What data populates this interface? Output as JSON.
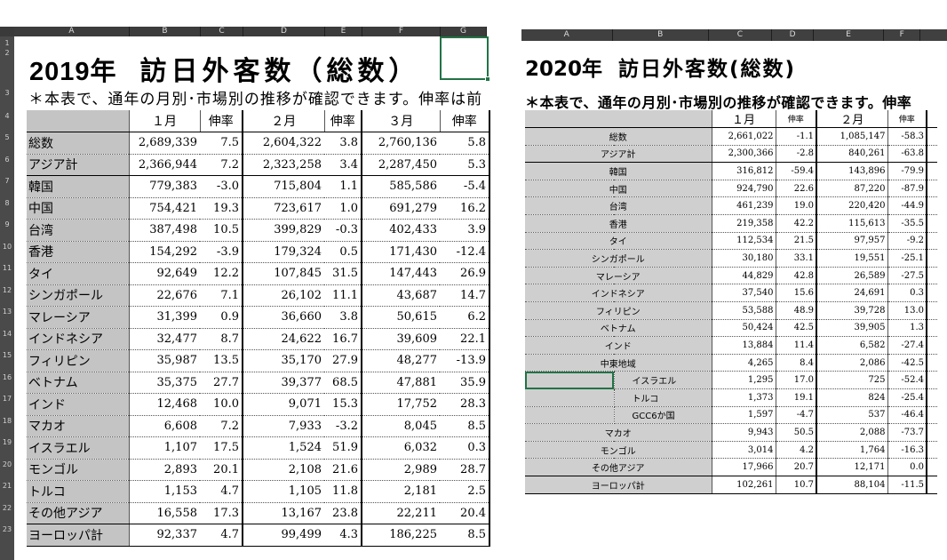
{
  "left": {
    "columns": [
      "A",
      "B",
      "C",
      "D",
      "E",
      "F",
      "G"
    ],
    "row_numbers": [
      "1",
      "2",
      "3",
      "4",
      "5",
      "6",
      "7",
      "8",
      "9",
      "10",
      "11",
      "12",
      "13",
      "14",
      "15",
      "16",
      "17",
      "18",
      "19",
      "20",
      "21",
      "22",
      "23"
    ],
    "title_year": "2019年",
    "title_name": "訪日外客数（総数）",
    "note": "＊本表で、通年の月別･市場別の推移が確認できます。伸率は前",
    "headers": [
      "",
      "１月",
      "伸率",
      "２月",
      "伸率",
      "３月",
      "伸率"
    ],
    "rows": [
      {
        "label": "総数",
        "v1": "2,689,339",
        "r1": "7.5",
        "v2": "2,604,322",
        "r2": "3.8",
        "v3": "2,760,136",
        "r3": "5.8"
      },
      {
        "label": "アジア計",
        "v1": "2,366,944",
        "r1": "7.2",
        "v2": "2,323,258",
        "r2": "3.4",
        "v3": "2,287,450",
        "r3": "5.3"
      },
      {
        "label": "韓国",
        "v1": "779,383",
        "r1": "-3.0",
        "v2": "715,804",
        "r2": "1.1",
        "v3": "585,586",
        "r3": "-5.4"
      },
      {
        "label": "中国",
        "v1": "754,421",
        "r1": "19.3",
        "v2": "723,617",
        "r2": "1.0",
        "v3": "691,279",
        "r3": "16.2"
      },
      {
        "label": "台湾",
        "v1": "387,498",
        "r1": "10.5",
        "v2": "399,829",
        "r2": "-0.3",
        "v3": "402,433",
        "r3": "3.9"
      },
      {
        "label": "香港",
        "v1": "154,292",
        "r1": "-3.9",
        "v2": "179,324",
        "r2": "0.5",
        "v3": "171,430",
        "r3": "-12.4"
      },
      {
        "label": "タイ",
        "v1": "92,649",
        "r1": "12.2",
        "v2": "107,845",
        "r2": "31.5",
        "v3": "147,443",
        "r3": "26.9"
      },
      {
        "label": "シンガポール",
        "v1": "22,676",
        "r1": "7.1",
        "v2": "26,102",
        "r2": "11.1",
        "v3": "43,687",
        "r3": "14.7"
      },
      {
        "label": "マレーシア",
        "v1": "31,399",
        "r1": "0.9",
        "v2": "36,660",
        "r2": "3.8",
        "v3": "50,615",
        "r3": "6.2"
      },
      {
        "label": "インドネシア",
        "v1": "32,477",
        "r1": "8.7",
        "v2": "24,622",
        "r2": "16.7",
        "v3": "39,609",
        "r3": "22.1"
      },
      {
        "label": "フィリピン",
        "v1": "35,987",
        "r1": "13.5",
        "v2": "35,170",
        "r2": "27.9",
        "v3": "48,277",
        "r3": "-13.9"
      },
      {
        "label": "ベトナム",
        "v1": "35,375",
        "r1": "27.7",
        "v2": "39,377",
        "r2": "68.5",
        "v3": "47,881",
        "r3": "35.9"
      },
      {
        "label": "インド",
        "v1": "12,468",
        "r1": "10.0",
        "v2": "9,071",
        "r2": "15.3",
        "v3": "17,752",
        "r3": "28.3"
      },
      {
        "label": "マカオ",
        "v1": "6,608",
        "r1": "7.2",
        "v2": "7,933",
        "r2": "-3.2",
        "v3": "8,045",
        "r3": "8.5"
      },
      {
        "label": "イスラエル",
        "v1": "1,107",
        "r1": "17.5",
        "v2": "1,524",
        "r2": "51.9",
        "v3": "6,032",
        "r3": "0.3"
      },
      {
        "label": "モンゴル",
        "v1": "2,893",
        "r1": "20.1",
        "v2": "2,108",
        "r2": "21.6",
        "v3": "2,989",
        "r3": "28.7"
      },
      {
        "label": "トルコ",
        "v1": "1,153",
        "r1": "4.7",
        "v2": "1,105",
        "r2": "11.8",
        "v3": "2,181",
        "r3": "2.5"
      },
      {
        "label": "その他アジア",
        "v1": "16,558",
        "r1": "17.3",
        "v2": "13,167",
        "r2": "23.8",
        "v3": "22,211",
        "r3": "20.4"
      },
      {
        "label": "ヨーロッパ計",
        "v1": "92,337",
        "r1": "4.7",
        "v2": "99,499",
        "r2": "4.3",
        "v3": "186,225",
        "r3": "8.5"
      }
    ]
  },
  "right": {
    "columns": [
      "A",
      "B",
      "C",
      "D",
      "E",
      "F"
    ],
    "title_year": "2020年",
    "title_name": "訪日外客数(総数)",
    "note": "＊本表で、通年の月別･市場別の推移が確認できます。伸率",
    "headers": [
      "",
      "",
      "１月",
      "伸率",
      "２月",
      "伸率"
    ],
    "rows": [
      {
        "label": "総数",
        "sub": false,
        "v1": "2,661,022",
        "r1": "-1.1",
        "v2": "1,085,147",
        "r2": "-58.3"
      },
      {
        "label": "アジア計",
        "sub": false,
        "v1": "2,300,366",
        "r1": "-2.8",
        "v2": "840,261",
        "r2": "-63.8"
      },
      {
        "label": "韓国",
        "sub": false,
        "v1": "316,812",
        "r1": "-59.4",
        "v2": "143,896",
        "r2": "-79.9"
      },
      {
        "label": "中国",
        "sub": false,
        "v1": "924,790",
        "r1": "22.6",
        "v2": "87,220",
        "r2": "-87.9"
      },
      {
        "label": "台湾",
        "sub": false,
        "v1": "461,239",
        "r1": "19.0",
        "v2": "220,420",
        "r2": "-44.9"
      },
      {
        "label": "香港",
        "sub": false,
        "v1": "219,358",
        "r1": "42.2",
        "v2": "115,613",
        "r2": "-35.5"
      },
      {
        "label": "タイ",
        "sub": false,
        "v1": "112,534",
        "r1": "21.5",
        "v2": "97,957",
        "r2": "-9.2"
      },
      {
        "label": "シンガポール",
        "sub": false,
        "v1": "30,180",
        "r1": "33.1",
        "v2": "19,551",
        "r2": "-25.1"
      },
      {
        "label": "マレーシア",
        "sub": false,
        "v1": "44,829",
        "r1": "42.8",
        "v2": "26,589",
        "r2": "-27.5"
      },
      {
        "label": "インドネシア",
        "sub": false,
        "v1": "37,540",
        "r1": "15.6",
        "v2": "24,691",
        "r2": "0.3"
      },
      {
        "label": "フィリピン",
        "sub": false,
        "v1": "53,588",
        "r1": "48.9",
        "v2": "39,728",
        "r2": "13.0"
      },
      {
        "label": "ベトナム",
        "sub": false,
        "v1": "50,424",
        "r1": "42.5",
        "v2": "39,905",
        "r2": "1.3"
      },
      {
        "label": "インド",
        "sub": false,
        "v1": "13,884",
        "r1": "11.4",
        "v2": "6,582",
        "r2": "-27.4"
      },
      {
        "label": "中東地域",
        "sub": false,
        "v1": "4,265",
        "r1": "8.4",
        "v2": "2,086",
        "r2": "-42.5"
      },
      {
        "label": "イスラエル",
        "sub": true,
        "v1": "1,295",
        "r1": "17.0",
        "v2": "725",
        "r2": "-52.4"
      },
      {
        "label": "トルコ",
        "sub": true,
        "v1": "1,373",
        "r1": "19.1",
        "v2": "824",
        "r2": "-25.4"
      },
      {
        "label": "GCC6か国",
        "sub": true,
        "v1": "1,597",
        "r1": "-4.7",
        "v2": "537",
        "r2": "-46.4"
      },
      {
        "label": "マカオ",
        "sub": false,
        "v1": "9,943",
        "r1": "50.5",
        "v2": "2,088",
        "r2": "-73.7"
      },
      {
        "label": "モンゴル",
        "sub": false,
        "v1": "3,014",
        "r1": "4.2",
        "v2": "1,764",
        "r2": "-16.3"
      },
      {
        "label": "その他アジア",
        "sub": false,
        "v1": "17,966",
        "r1": "20.7",
        "v2": "12,171",
        "r2": "0.0"
      },
      {
        "label": "ヨーロッパ計",
        "sub": false,
        "v1": "102,261",
        "r1": "10.7",
        "v2": "88,104",
        "r2": "-11.5"
      }
    ]
  }
}
